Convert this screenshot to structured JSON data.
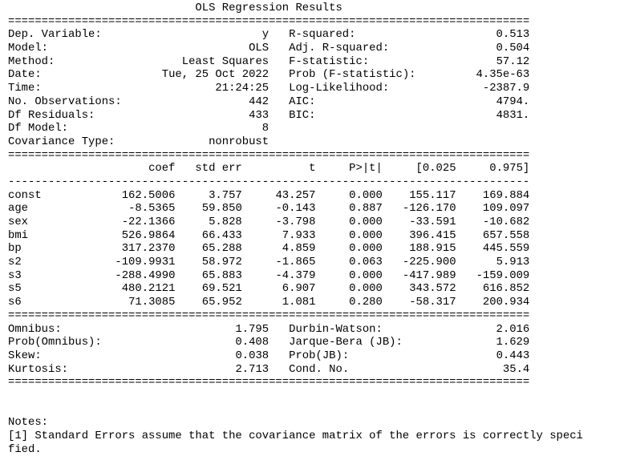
{
  "title": "OLS Regression Results",
  "summary": {
    "left": [
      {
        "label": "Dep. Variable:",
        "value": "y"
      },
      {
        "label": "Model:",
        "value": "OLS"
      },
      {
        "label": "Method:",
        "value": "Least Squares"
      },
      {
        "label": "Date:",
        "value": "Tue, 25 Oct 2022"
      },
      {
        "label": "Time:",
        "value": "21:24:25"
      },
      {
        "label": "No. Observations:",
        "value": "442"
      },
      {
        "label": "Df Residuals:",
        "value": "433"
      },
      {
        "label": "Df Model:",
        "value": "8"
      },
      {
        "label": "Covariance Type:",
        "value": "nonrobust"
      }
    ],
    "right": [
      {
        "label": "R-squared:",
        "value": "0.513"
      },
      {
        "label": "Adj. R-squared:",
        "value": "0.504"
      },
      {
        "label": "F-statistic:",
        "value": "57.12"
      },
      {
        "label": "Prob (F-statistic):",
        "value": "4.35e-63"
      },
      {
        "label": "Log-Likelihood:",
        "value": "-2387.9"
      },
      {
        "label": "AIC:",
        "value": "4794."
      },
      {
        "label": "BIC:",
        "value": "4831."
      }
    ]
  },
  "coef_table": {
    "headers": [
      "coef",
      "std err",
      "t",
      "P>|t|",
      "[0.025",
      "0.975]"
    ],
    "rows": [
      {
        "name": "const",
        "cells": [
          "162.5006",
          "3.757",
          "43.257",
          "0.000",
          "155.117",
          "169.884"
        ]
      },
      {
        "name": "age",
        "cells": [
          "-8.5365",
          "59.850",
          "-0.143",
          "0.887",
          "-126.170",
          "109.097"
        ]
      },
      {
        "name": "sex",
        "cells": [
          "-22.1366",
          "5.828",
          "-3.798",
          "0.000",
          "-33.591",
          "-10.682"
        ]
      },
      {
        "name": "bmi",
        "cells": [
          "526.9864",
          "66.433",
          "7.933",
          "0.000",
          "396.415",
          "657.558"
        ]
      },
      {
        "name": "bp",
        "cells": [
          "317.2370",
          "65.288",
          "4.859",
          "0.000",
          "188.915",
          "445.559"
        ]
      },
      {
        "name": "s2",
        "cells": [
          "-109.9931",
          "58.972",
          "-1.865",
          "0.063",
          "-225.900",
          "5.913"
        ]
      },
      {
        "name": "s3",
        "cells": [
          "-288.4990",
          "65.883",
          "-4.379",
          "0.000",
          "-417.989",
          "-159.009"
        ]
      },
      {
        "name": "s5",
        "cells": [
          "480.2121",
          "69.521",
          "6.907",
          "0.000",
          "343.572",
          "616.852"
        ]
      },
      {
        "name": "s6",
        "cells": [
          "71.3085",
          "65.952",
          "1.081",
          "0.280",
          "-58.317",
          "200.934"
        ]
      }
    ]
  },
  "diagnostics": {
    "left": [
      {
        "label": "Omnibus:",
        "value": "1.795"
      },
      {
        "label": "Prob(Omnibus):",
        "value": "0.408"
      },
      {
        "label": "Skew:",
        "value": "0.038"
      },
      {
        "label": "Kurtosis:",
        "value": "2.713"
      }
    ],
    "right": [
      {
        "label": "Durbin-Watson:",
        "value": "2.016"
      },
      {
        "label": "Jarque-Bera (JB):",
        "value": "1.629"
      },
      {
        "label": "Prob(JB):",
        "value": "0.443"
      },
      {
        "label": "Cond. No.",
        "value": "35.4"
      }
    ]
  },
  "notes": {
    "heading": "Notes:",
    "line1": "[1] Standard Errors assume that the covariance matrix of the errors is correctly speci",
    "line2": "fied."
  }
}
